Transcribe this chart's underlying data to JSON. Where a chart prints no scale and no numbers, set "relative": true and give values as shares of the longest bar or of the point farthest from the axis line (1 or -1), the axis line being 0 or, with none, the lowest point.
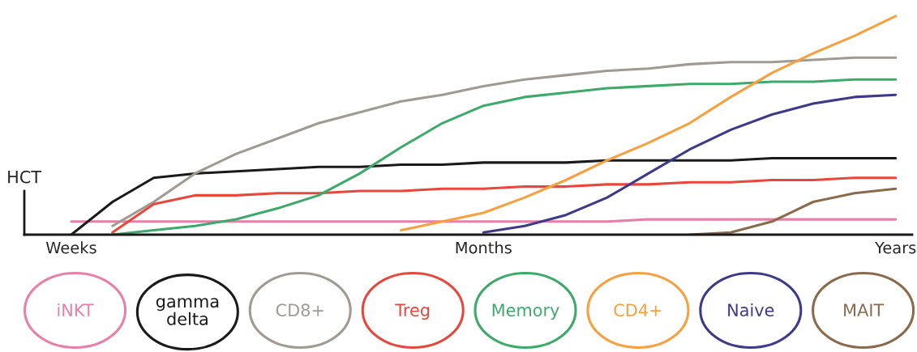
{
  "chart_data": {
    "type": "line",
    "relative": true,
    "ylabel": "HCT",
    "legend": "bottom",
    "grid": false,
    "marker": "none",
    "line_style": "solid",
    "categories": [
      null,
      "Weeks",
      null,
      null,
      null,
      null,
      null,
      null,
      null,
      null,
      null,
      "Months",
      null,
      null,
      null,
      null,
      null,
      null,
      null,
      null,
      null,
      "Years"
    ],
    "series": [
      {
        "name": "iNKT",
        "color": "#e97fa8",
        "values": [
          null,
          0.06,
          0.06,
          0.06,
          0.06,
          0.06,
          0.06,
          0.06,
          0.06,
          0.06,
          0.06,
          0.06,
          0.06,
          0.06,
          0.06,
          0.07,
          0.07,
          0.07,
          0.07,
          0.07,
          0.07,
          0.07
        ]
      },
      {
        "name": "gamma delta",
        "color": "#1a1a1a",
        "values": [
          null,
          0,
          0.15,
          0.26,
          0.28,
          0.29,
          0.3,
          0.31,
          0.31,
          0.32,
          0.32,
          0.33,
          0.33,
          0.33,
          0.34,
          0.34,
          0.34,
          0.34,
          0.35,
          0.35,
          0.35,
          0.35
        ]
      },
      {
        "name": "CD8+",
        "color": "#a09a93",
        "values": [
          null,
          null,
          0.04,
          0.15,
          0.28,
          0.37,
          0.44,
          0.51,
          0.56,
          0.61,
          0.64,
          0.68,
          0.71,
          0.73,
          0.75,
          0.76,
          0.78,
          0.79,
          0.79,
          0.8,
          0.81,
          0.81
        ]
      },
      {
        "name": "Treg",
        "color": "#e8473c",
        "values": [
          null,
          null,
          0.01,
          0.14,
          0.18,
          0.18,
          0.19,
          0.19,
          0.2,
          0.2,
          0.21,
          0.21,
          0.22,
          0.22,
          0.23,
          0.23,
          0.24,
          0.24,
          0.25,
          0.25,
          0.26,
          0.26
        ]
      },
      {
        "name": "Memory",
        "color": "#3daa6a",
        "values": [
          null,
          null,
          0,
          0.02,
          0.04,
          0.07,
          0.12,
          0.18,
          0.28,
          0.4,
          0.51,
          0.59,
          0.63,
          0.65,
          0.67,
          0.68,
          0.69,
          0.69,
          0.7,
          0.7,
          0.71,
          0.71
        ]
      },
      {
        "name": "CD4+",
        "color": "#f7a040",
        "values": [
          null,
          null,
          null,
          null,
          null,
          null,
          null,
          null,
          null,
          0.02,
          0.06,
          0.1,
          0.17,
          0.25,
          0.34,
          0.42,
          0.51,
          0.63,
          0.74,
          0.83,
          0.91,
          1
        ]
      },
      {
        "name": "Naive",
        "color": "#3d3a8a",
        "values": [
          null,
          null,
          null,
          null,
          null,
          null,
          null,
          null,
          null,
          null,
          null,
          0.01,
          0.04,
          0.09,
          0.17,
          0.28,
          0.39,
          0.48,
          0.55,
          0.6,
          0.63,
          0.64
        ]
      },
      {
        "name": "MAIT",
        "color": "#8a6a4a",
        "values": [
          null,
          null,
          null,
          null,
          null,
          null,
          null,
          null,
          null,
          null,
          null,
          null,
          null,
          null,
          null,
          null,
          0,
          0.01,
          0.06,
          0.15,
          0.19,
          0.21
        ]
      }
    ]
  }
}
